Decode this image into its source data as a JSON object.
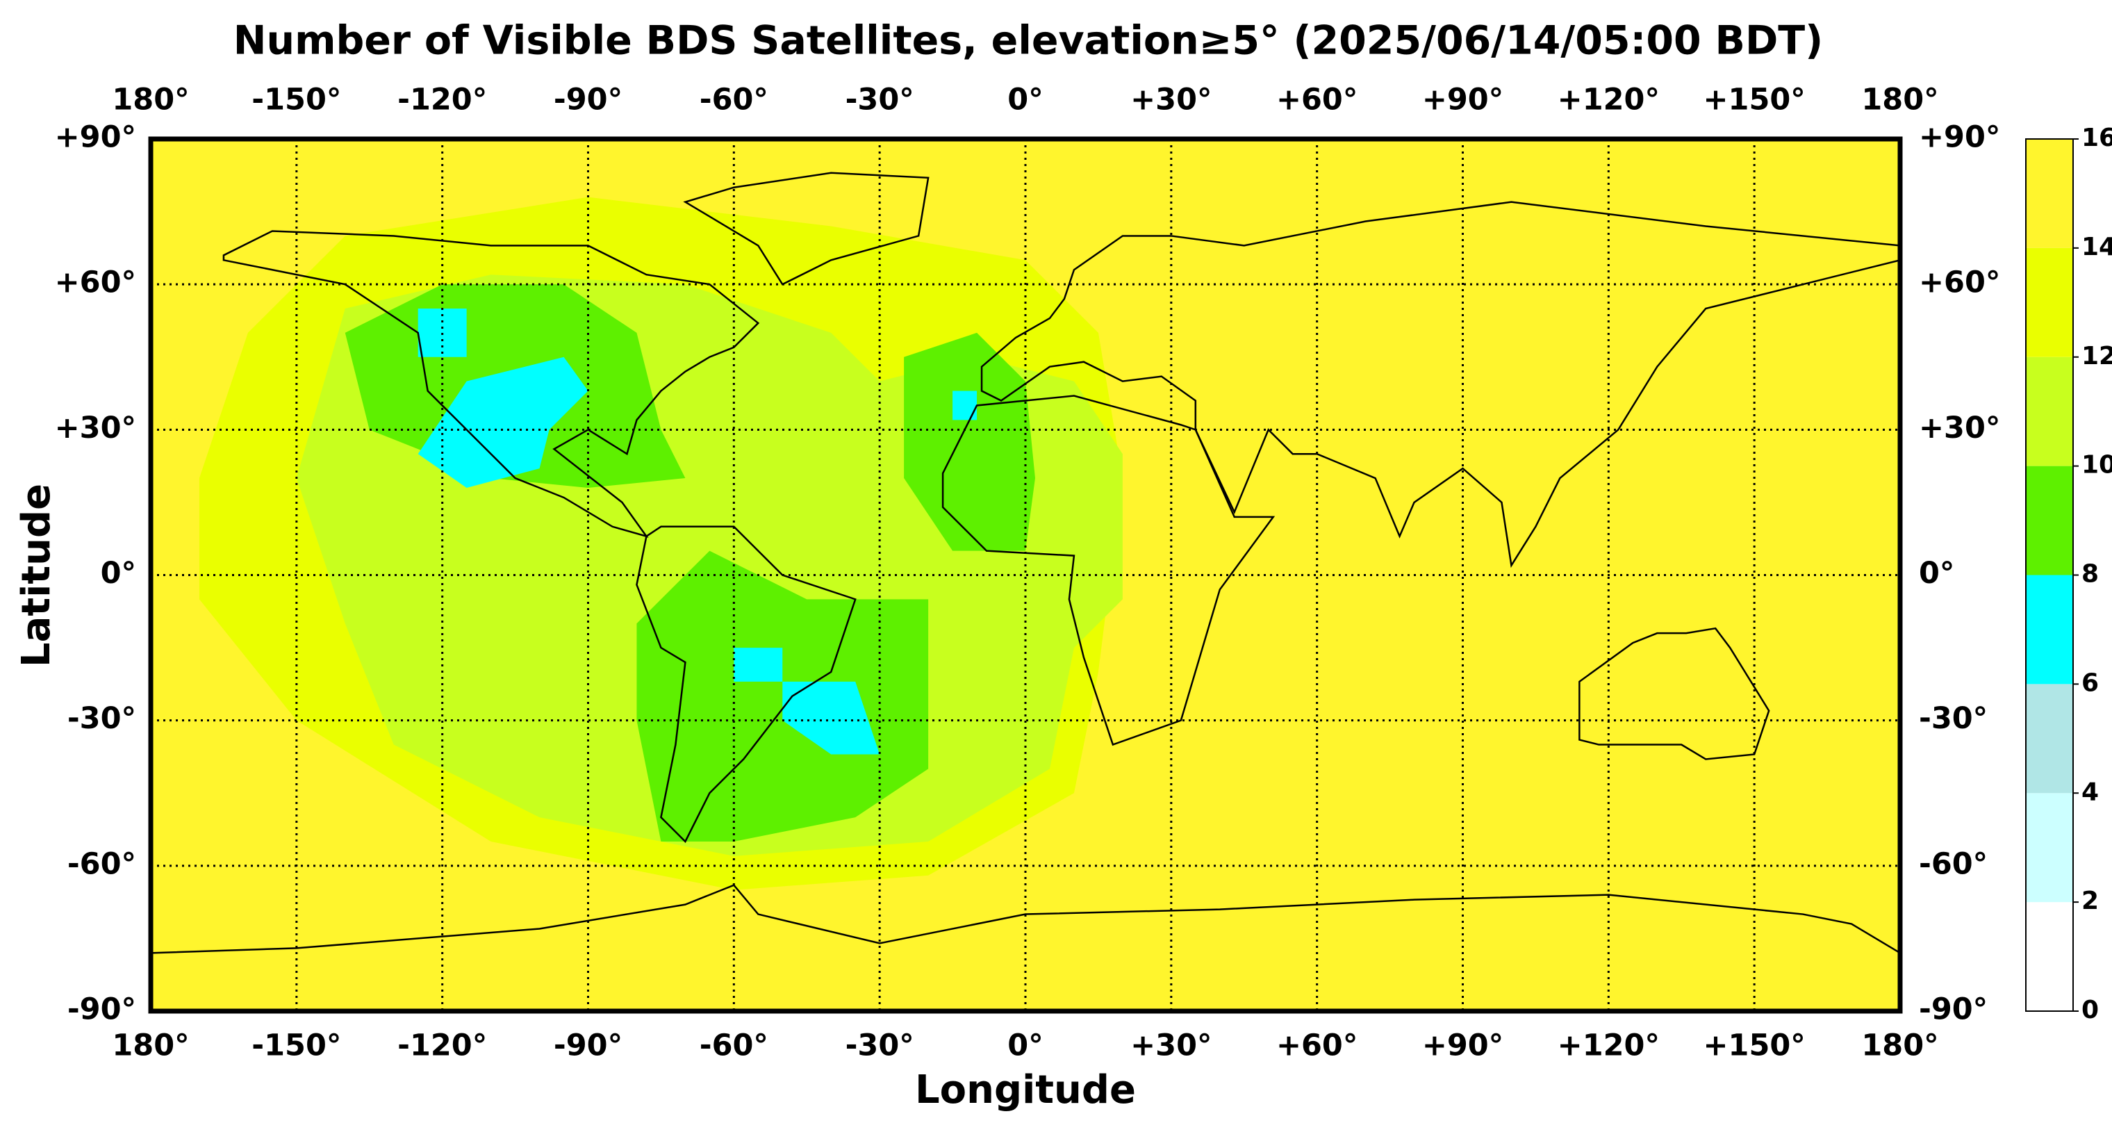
{
  "chart_data": {
    "type": "map",
    "title": "Number of Visible BDS Satellites, elevation≥5° (2025/06/14/05:00 BDT)",
    "x_label": "Longitude",
    "y_label": "Latitude",
    "xlim": [
      -180,
      180
    ],
    "ylim": [
      -90,
      90
    ],
    "xticks": [
      {
        "value": -180,
        "label": "180°"
      },
      {
        "value": -150,
        "label": "-150°"
      },
      {
        "value": -120,
        "label": "-120°"
      },
      {
        "value": -90,
        "label": "-90°"
      },
      {
        "value": -60,
        "label": "-60°"
      },
      {
        "value": -30,
        "label": "-30°"
      },
      {
        "value": 0,
        "label": "0°"
      },
      {
        "value": 30,
        "label": "+30°"
      },
      {
        "value": 60,
        "label": "+60°"
      },
      {
        "value": 90,
        "label": "+90°"
      },
      {
        "value": 120,
        "label": "+120°"
      },
      {
        "value": 150,
        "label": "+150°"
      },
      {
        "value": 180,
        "label": "180°"
      }
    ],
    "yticks": [
      {
        "value": -90,
        "label": "-90°"
      },
      {
        "value": -60,
        "label": "-60°"
      },
      {
        "value": -30,
        "label": "-30°"
      },
      {
        "value": 0,
        "label": "0°"
      },
      {
        "value": 30,
        "label": "+30°"
      },
      {
        "value": 60,
        "label": "+60°"
      },
      {
        "value": 90,
        "label": "+90°"
      }
    ],
    "grid": true,
    "colorbar": {
      "ticks": [
        0,
        2,
        4,
        6,
        8,
        10,
        12,
        14,
        16
      ],
      "colors": [
        "#ffffff",
        "#ccffff",
        "#b0e6e6",
        "#00ffff",
        "#5ef000",
        "#c8ff1e",
        "#eaff00",
        "#fff52d"
      ]
    },
    "background_level": 15,
    "regions": [
      {
        "level": 13,
        "lon": [
          -170,
          -160,
          -140,
          -90,
          -40,
          0,
          15,
          20,
          15,
          10,
          -20,
          -60,
          -110,
          -150,
          -170
        ],
        "lat": [
          20,
          50,
          70,
          78,
          72,
          65,
          50,
          20,
          -20,
          -45,
          -62,
          -65,
          -55,
          -30,
          -5
        ]
      },
      {
        "level": 11,
        "lon": [
          -150,
          -140,
          -110,
          -70,
          -40,
          -30,
          -10,
          10,
          20,
          20,
          10,
          5,
          -20,
          -60,
          -100,
          -130,
          -140
        ],
        "lat": [
          20,
          55,
          62,
          60,
          50,
          40,
          45,
          40,
          25,
          -5,
          -15,
          -40,
          -55,
          -58,
          -50,
          -35,
          -10
        ]
      },
      {
        "level": 9,
        "lon": [
          -140,
          -120,
          -95,
          -80,
          -75,
          -70,
          -90,
          -110,
          -135
        ],
        "lat": [
          50,
          60,
          60,
          50,
          30,
          20,
          18,
          20,
          30
        ]
      },
      {
        "level": 9,
        "lon": [
          -25,
          -10,
          0,
          2,
          0,
          -15,
          -25
        ],
        "lat": [
          45,
          50,
          40,
          20,
          5,
          5,
          20
        ]
      },
      {
        "level": 9,
        "lon": [
          -80,
          -65,
          -45,
          -20,
          -20,
          -35,
          -60,
          -75,
          -80
        ],
        "lat": [
          -10,
          5,
          -5,
          -5,
          -40,
          -50,
          -55,
          -55,
          -30
        ]
      },
      {
        "level": 7,
        "lon": [
          -125,
          -115,
          -115,
          -125
        ],
        "lat": [
          55,
          55,
          45,
          45
        ]
      },
      {
        "level": 7,
        "lon": [
          -115,
          -95,
          -90,
          -98,
          -100,
          -115,
          -125
        ],
        "lat": [
          40,
          45,
          38,
          30,
          22,
          18,
          25
        ]
      },
      {
        "level": 7,
        "lon": [
          -15,
          -10,
          -10,
          -15
        ],
        "lat": [
          38,
          38,
          32,
          32
        ]
      },
      {
        "level": 7,
        "lon": [
          -60,
          -50,
          -50,
          -60
        ],
        "lat": [
          -15,
          -15,
          -22,
          -22
        ]
      },
      {
        "level": 7,
        "lon": [
          -50,
          -35,
          -30,
          -40,
          -50
        ],
        "lat": [
          -22,
          -22,
          -37,
          -37,
          -30
        ]
      }
    ]
  }
}
